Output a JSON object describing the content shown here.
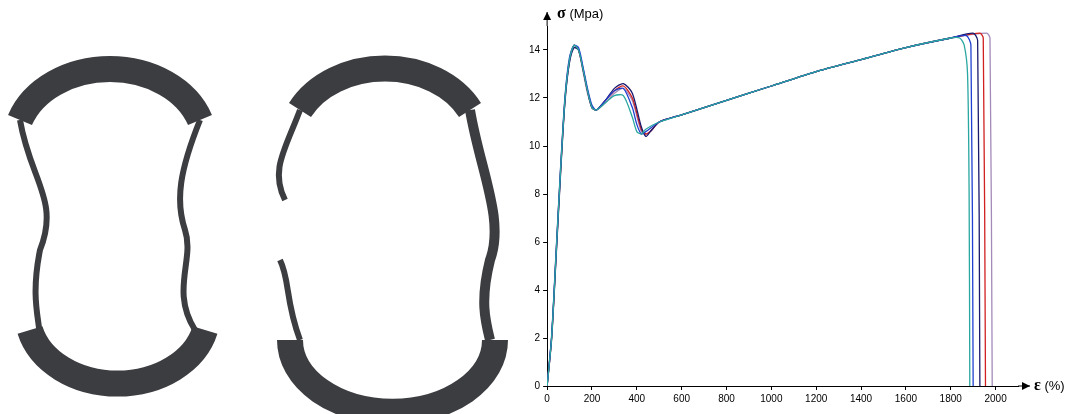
{
  "chart_data": {
    "type": "line",
    "ylabel": "σ (Mpa)",
    "xlabel": "ε (%)",
    "xlim": [
      0,
      2100
    ],
    "xticks": [
      0,
      200,
      400,
      600,
      800,
      1000,
      1200,
      1400,
      1600,
      1800,
      2000
    ],
    "ylim": [
      0,
      15
    ],
    "yticks": [
      0,
      2,
      4,
      6,
      8,
      10,
      12,
      14
    ],
    "grid": false,
    "series": [
      {
        "color": "#2aa7a0",
        "x": [
          0,
          20,
          40,
          60,
          80,
          100,
          120,
          140,
          160,
          180,
          200,
          220,
          260,
          300,
          340,
          380,
          400,
          420,
          440,
          500,
          600,
          800,
          1000,
          1200,
          1400,
          1600,
          1800,
          1840,
          1860,
          1875,
          1882,
          1885
        ],
        "values": [
          0,
          2,
          5.5,
          9,
          12,
          13.6,
          14.2,
          14.0,
          13.2,
          12.3,
          11.6,
          11.5,
          11.8,
          12.1,
          12.1,
          11.2,
          10.6,
          10.5,
          10.7,
          11.0,
          11.3,
          11.9,
          12.5,
          13.1,
          13.6,
          14.1,
          14.5,
          14.5,
          14.2,
          13.0,
          8,
          0
        ]
      },
      {
        "color": "#1f3fd0",
        "x": [
          0,
          20,
          40,
          60,
          80,
          100,
          120,
          140,
          160,
          180,
          200,
          220,
          260,
          300,
          340,
          380,
          400,
          420,
          440,
          500,
          600,
          800,
          1000,
          1200,
          1400,
          1600,
          1800,
          1870,
          1890,
          1900
        ],
        "values": [
          0,
          2.1,
          5.6,
          9.1,
          12.1,
          13.7,
          14.2,
          14.1,
          13.3,
          12.4,
          11.7,
          11.5,
          11.9,
          12.3,
          12.4,
          11.6,
          10.9,
          10.5,
          10.6,
          11.0,
          11.3,
          11.9,
          12.5,
          13.1,
          13.6,
          14.1,
          14.5,
          14.6,
          14.2,
          0
        ]
      },
      {
        "color": "#1a1a6e",
        "x": [
          0,
          20,
          40,
          60,
          80,
          100,
          120,
          140,
          160,
          180,
          200,
          220,
          260,
          300,
          340,
          380,
          420,
          440,
          460,
          500,
          600,
          800,
          1000,
          1200,
          1400,
          1600,
          1800,
          1900,
          1920,
          1930
        ],
        "values": [
          0,
          2.0,
          5.4,
          8.9,
          11.9,
          13.5,
          14.1,
          14.0,
          13.2,
          12.3,
          11.6,
          11.5,
          11.9,
          12.4,
          12.6,
          12.2,
          10.8,
          10.4,
          10.6,
          11.0,
          11.3,
          11.9,
          12.5,
          13.1,
          13.6,
          14.1,
          14.5,
          14.7,
          14.4,
          0
        ]
      },
      {
        "color": "#d02020",
        "x": [
          0,
          20,
          40,
          60,
          80,
          100,
          120,
          140,
          160,
          180,
          200,
          220,
          260,
          300,
          340,
          380,
          420,
          440,
          460,
          500,
          600,
          800,
          1000,
          1200,
          1400,
          1600,
          1800,
          1930,
          1945,
          1955
        ],
        "values": [
          0,
          2.0,
          5.5,
          9.0,
          12.0,
          13.6,
          14.2,
          14.0,
          13.2,
          12.3,
          11.6,
          11.5,
          11.9,
          12.3,
          12.5,
          12.0,
          10.7,
          10.5,
          10.6,
          11.0,
          11.3,
          11.9,
          12.5,
          13.1,
          13.6,
          14.1,
          14.5,
          14.7,
          14.5,
          0
        ]
      },
      {
        "color": "#a48ab8",
        "x": [
          0,
          20,
          40,
          60,
          80,
          100,
          120,
          140,
          160,
          180,
          200,
          220,
          260,
          300,
          340,
          380,
          420,
          440,
          460,
          500,
          600,
          800,
          1000,
          1200,
          1400,
          1600,
          1800,
          1960,
          1975,
          1985
        ],
        "values": [
          0,
          1.9,
          5.3,
          8.8,
          11.9,
          13.5,
          14.1,
          14.0,
          13.1,
          12.2,
          11.6,
          11.5,
          11.8,
          12.2,
          12.4,
          11.9,
          10.6,
          10.5,
          10.6,
          11.0,
          11.3,
          11.9,
          12.5,
          13.1,
          13.6,
          14.1,
          14.5,
          14.7,
          14.5,
          0
        ]
      }
    ]
  }
}
